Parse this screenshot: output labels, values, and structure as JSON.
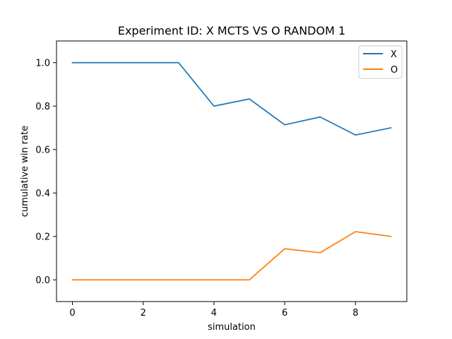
{
  "chart_data": {
    "type": "line",
    "title": "Experiment ID: X MCTS VS O RANDOM 1",
    "xlabel": "simulation",
    "ylabel": "cumulative win rate",
    "x": [
      0,
      1,
      2,
      3,
      4,
      5,
      6,
      7,
      8,
      9
    ],
    "xlim": [
      -0.45,
      9.45
    ],
    "ylim": [
      -0.1,
      1.1
    ],
    "xticks": [
      0,
      2,
      4,
      6,
      8
    ],
    "yticks": [
      0.0,
      0.2,
      0.4,
      0.6,
      0.8,
      1.0
    ],
    "xtick_labels": [
      "0",
      "2",
      "4",
      "6",
      "8"
    ],
    "ytick_labels": [
      "0.0",
      "0.2",
      "0.4",
      "0.6",
      "0.8",
      "1.0"
    ],
    "grid": false,
    "legend": "top-right",
    "series": [
      {
        "name": "X",
        "color": "#1f77b4",
        "values": [
          1.0,
          1.0,
          1.0,
          1.0,
          0.8,
          0.833,
          0.714,
          0.75,
          0.667,
          0.7
        ]
      },
      {
        "name": "O",
        "color": "#ff7f0e",
        "values": [
          0.0,
          0.0,
          0.0,
          0.0,
          0.0,
          0.0,
          0.143,
          0.125,
          0.222,
          0.2
        ]
      }
    ]
  }
}
